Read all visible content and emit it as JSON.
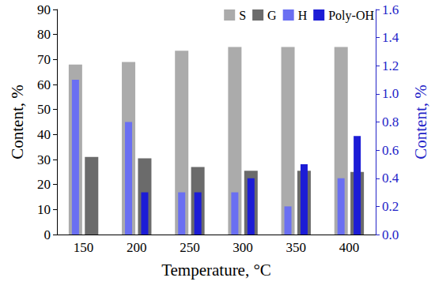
{
  "chart_data": {
    "type": "bar",
    "x_label": "Temperature, °C",
    "y_label": "Content, %",
    "y2_label": "Content, %",
    "categories": [
      "150",
      "200",
      "250",
      "300",
      "350",
      "400"
    ],
    "series": [
      {
        "name": "S",
        "color": "#ababab",
        "values": [
          68,
          69,
          73.5,
          75,
          75,
          75
        ]
      },
      {
        "name": "G",
        "color": "#6b6b6b",
        "values": [
          31,
          30.5,
          27,
          25.5,
          25.5,
          25
        ]
      },
      {
        "name": "H",
        "color": "#6a6ff2",
        "axis": "y2",
        "values": [
          1.1,
          0.8,
          0.3,
          0.3,
          0.2,
          0.4
        ]
      },
      {
        "name": "Poly-OH",
        "color": "#1c1cd6",
        "axis": "y2",
        "values": [
          null,
          0.3,
          0.3,
          0.4,
          0.5,
          0.7
        ]
      }
    ],
    "ylim": [
      0,
      90
    ],
    "yticks": [
      0,
      10,
      20,
      30,
      40,
      50,
      60,
      70,
      80,
      90
    ],
    "y2lim": [
      0,
      1.6
    ],
    "y2ticks": [
      {
        "value": 0,
        "label": "0.0"
      },
      {
        "value": 0.2,
        "label": "0.2"
      },
      {
        "value": 0.4,
        "label": "0.4"
      },
      {
        "value": 0.6,
        "label": "0.6"
      },
      {
        "value": 0.8,
        "label": "0.8"
      },
      {
        "value": 1.0,
        "label": "1.0"
      },
      {
        "value": 1.2,
        "label": "1.2"
      },
      {
        "value": 1.4,
        "label": "1.4"
      },
      {
        "value": 1.6,
        "label": "1.6"
      }
    ],
    "grid": false,
    "legend": "upper right"
  }
}
